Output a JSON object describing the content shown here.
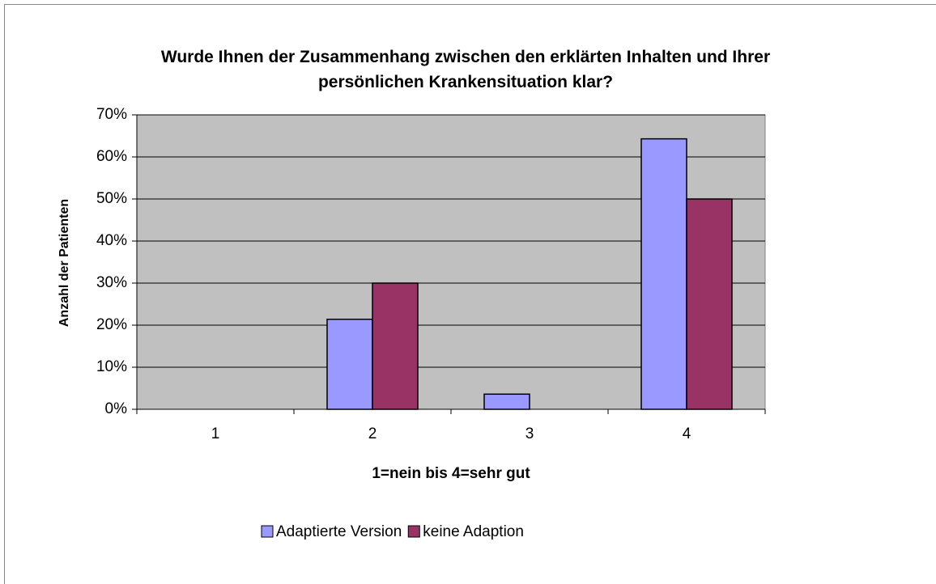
{
  "chart_data": {
    "type": "bar",
    "title": "Wurde Ihnen der Zusammenhang zwischen den erklärten Inhalten und Ihrer persönlichen Krankensituation klar?",
    "xlabel": "1=nein bis 4=sehr gut",
    "ylabel": "Anzahl der Patienten",
    "categories": [
      "1",
      "2",
      "3",
      "4"
    ],
    "series": [
      {
        "name": "Adaptierte Version",
        "color": "#9999ff",
        "values": [
          0,
          21.4,
          3.6,
          64.3
        ]
      },
      {
        "name": "keine Adaption",
        "color": "#993366",
        "values": [
          0,
          30,
          0,
          50
        ]
      }
    ],
    "ylim": [
      0,
      70
    ],
    "yticks": [
      {
        "value": 0,
        "label": "0%"
      },
      {
        "value": 10,
        "label": "10%"
      },
      {
        "value": 20,
        "label": "20%"
      },
      {
        "value": 30,
        "label": "30%"
      },
      {
        "value": 40,
        "label": "40%"
      },
      {
        "value": 50,
        "label": "50%"
      },
      {
        "value": 60,
        "label": "60%"
      },
      {
        "value": 70,
        "label": "70%"
      }
    ],
    "grid": true,
    "plot_background": "#c0c0c0",
    "legend": "bottom"
  }
}
